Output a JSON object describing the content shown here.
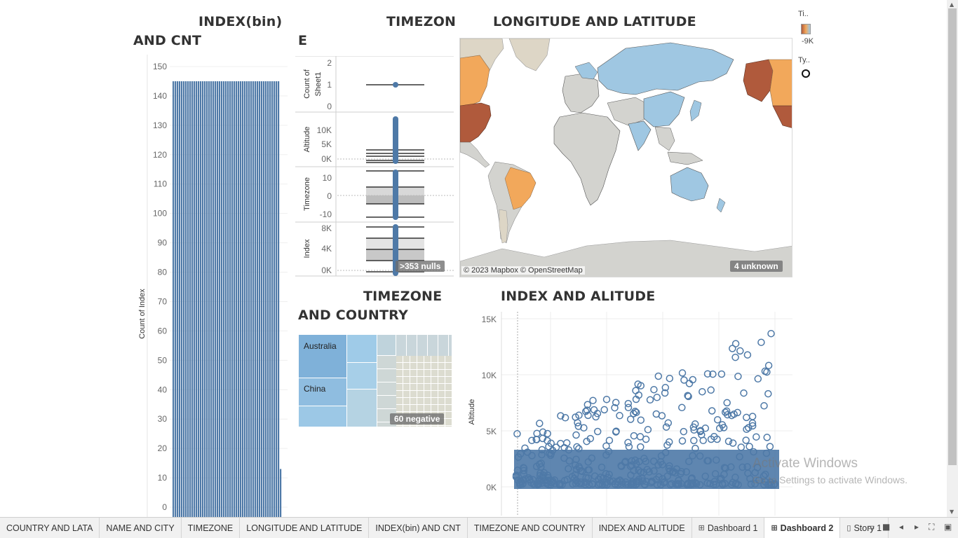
{
  "titles": {
    "index_line1": "INDEX(bin)",
    "index_line2": "AND CNT",
    "tz_line1": "TIMEZON",
    "tz_line2": "E",
    "lonlat": "LONGITUDE AND LATITUDE",
    "tzc_line1": "TIMEZONE",
    "tzc_line2": "AND COUNTRY",
    "idxalt": "INDEX AND ALITUDE"
  },
  "legend": {
    "color_title": "Ti..",
    "color_value": "-9K",
    "shape_title": "Ty.."
  },
  "map": {
    "attribution": "© 2023 Mapbox © OpenStreetMap",
    "unknown_badge": "4 unknown"
  },
  "timezone_panel": {
    "nulls_badge": ">353 nulls",
    "rows": [
      {
        "label": "Count of Sheet1",
        "ticks": [
          "2",
          "1",
          "0"
        ]
      },
      {
        "label": "Altitude",
        "ticks": [
          "10K",
          "5K",
          "0K"
        ]
      },
      {
        "label": "Timezone",
        "ticks": [
          "10",
          "0",
          "-10"
        ]
      },
      {
        "label": "Index",
        "ticks": [
          "8K",
          "4K",
          "0K"
        ]
      }
    ]
  },
  "treemap": {
    "labels": [
      "Australia",
      "China"
    ],
    "negative_badge": "60 negative"
  },
  "index_chart": {
    "ylabel": "Count of Index",
    "yticks": [
      "150",
      "140",
      "130",
      "120",
      "110",
      "100",
      "90",
      "80",
      "70",
      "60",
      "50",
      "40",
      "30",
      "20",
      "10",
      "0"
    ],
    "bar_value": 145,
    "bar_count": 52,
    "last_bar_value": 13
  },
  "chart_data": {
    "type": "bar",
    "title": "INDEX(bin) AND CNT",
    "xlabel": "",
    "ylabel": "Count of Index",
    "ylim": [
      0,
      150
    ],
    "values_note_series": [
      {
        "name": "Count of Index",
        "values": [
          145,
          145,
          145,
          145,
          145,
          145,
          145,
          145,
          145,
          145,
          145,
          145,
          145,
          145,
          145,
          145,
          145,
          145,
          145,
          145,
          145,
          145,
          145,
          145,
          145,
          145,
          145,
          145,
          145,
          145,
          145,
          145,
          145,
          145,
          145,
          145,
          145,
          145,
          145,
          145,
          145,
          145,
          145,
          145,
          145,
          145,
          145,
          145,
          145,
          145,
          145,
          13
        ]
      }
    ]
  },
  "scatter": {
    "ylabel": "Altitude",
    "yticks": [
      "15K",
      "10K",
      "5K",
      "0K"
    ]
  },
  "watermark": {
    "line1": "Activate Windows",
    "line2": "Go to Settings to activate Windows."
  },
  "tabs": [
    {
      "label": "COUNTRY AND LATA",
      "icon": "",
      "active": false
    },
    {
      "label": "NAME AND CITY",
      "icon": "",
      "active": false
    },
    {
      "label": "TIMEZONE",
      "icon": "",
      "active": false
    },
    {
      "label": "LONGITUDE AND LATITUDE",
      "icon": "",
      "active": false
    },
    {
      "label": "INDEX(bin) AND CNT",
      "icon": "",
      "active": false
    },
    {
      "label": "TIMEZONE AND COUNTRY",
      "icon": "",
      "active": false
    },
    {
      "label": "INDEX AND ALITUDE",
      "icon": "",
      "active": false
    },
    {
      "label": "Dashboard 1",
      "icon": "⊞",
      "active": false
    },
    {
      "label": "Dashboard 2",
      "icon": "⊞",
      "active": true
    },
    {
      "label": "Story 1",
      "icon": "▯",
      "active": false
    }
  ],
  "colors": {
    "bar_blue": "#4e79a7",
    "map_light_blue": "#9fc7e2",
    "map_orange": "#f2a85b",
    "map_dark_orange": "#b05a3c",
    "map_gray": "#d3d3cf",
    "land_beige": "#ddd6c6"
  }
}
